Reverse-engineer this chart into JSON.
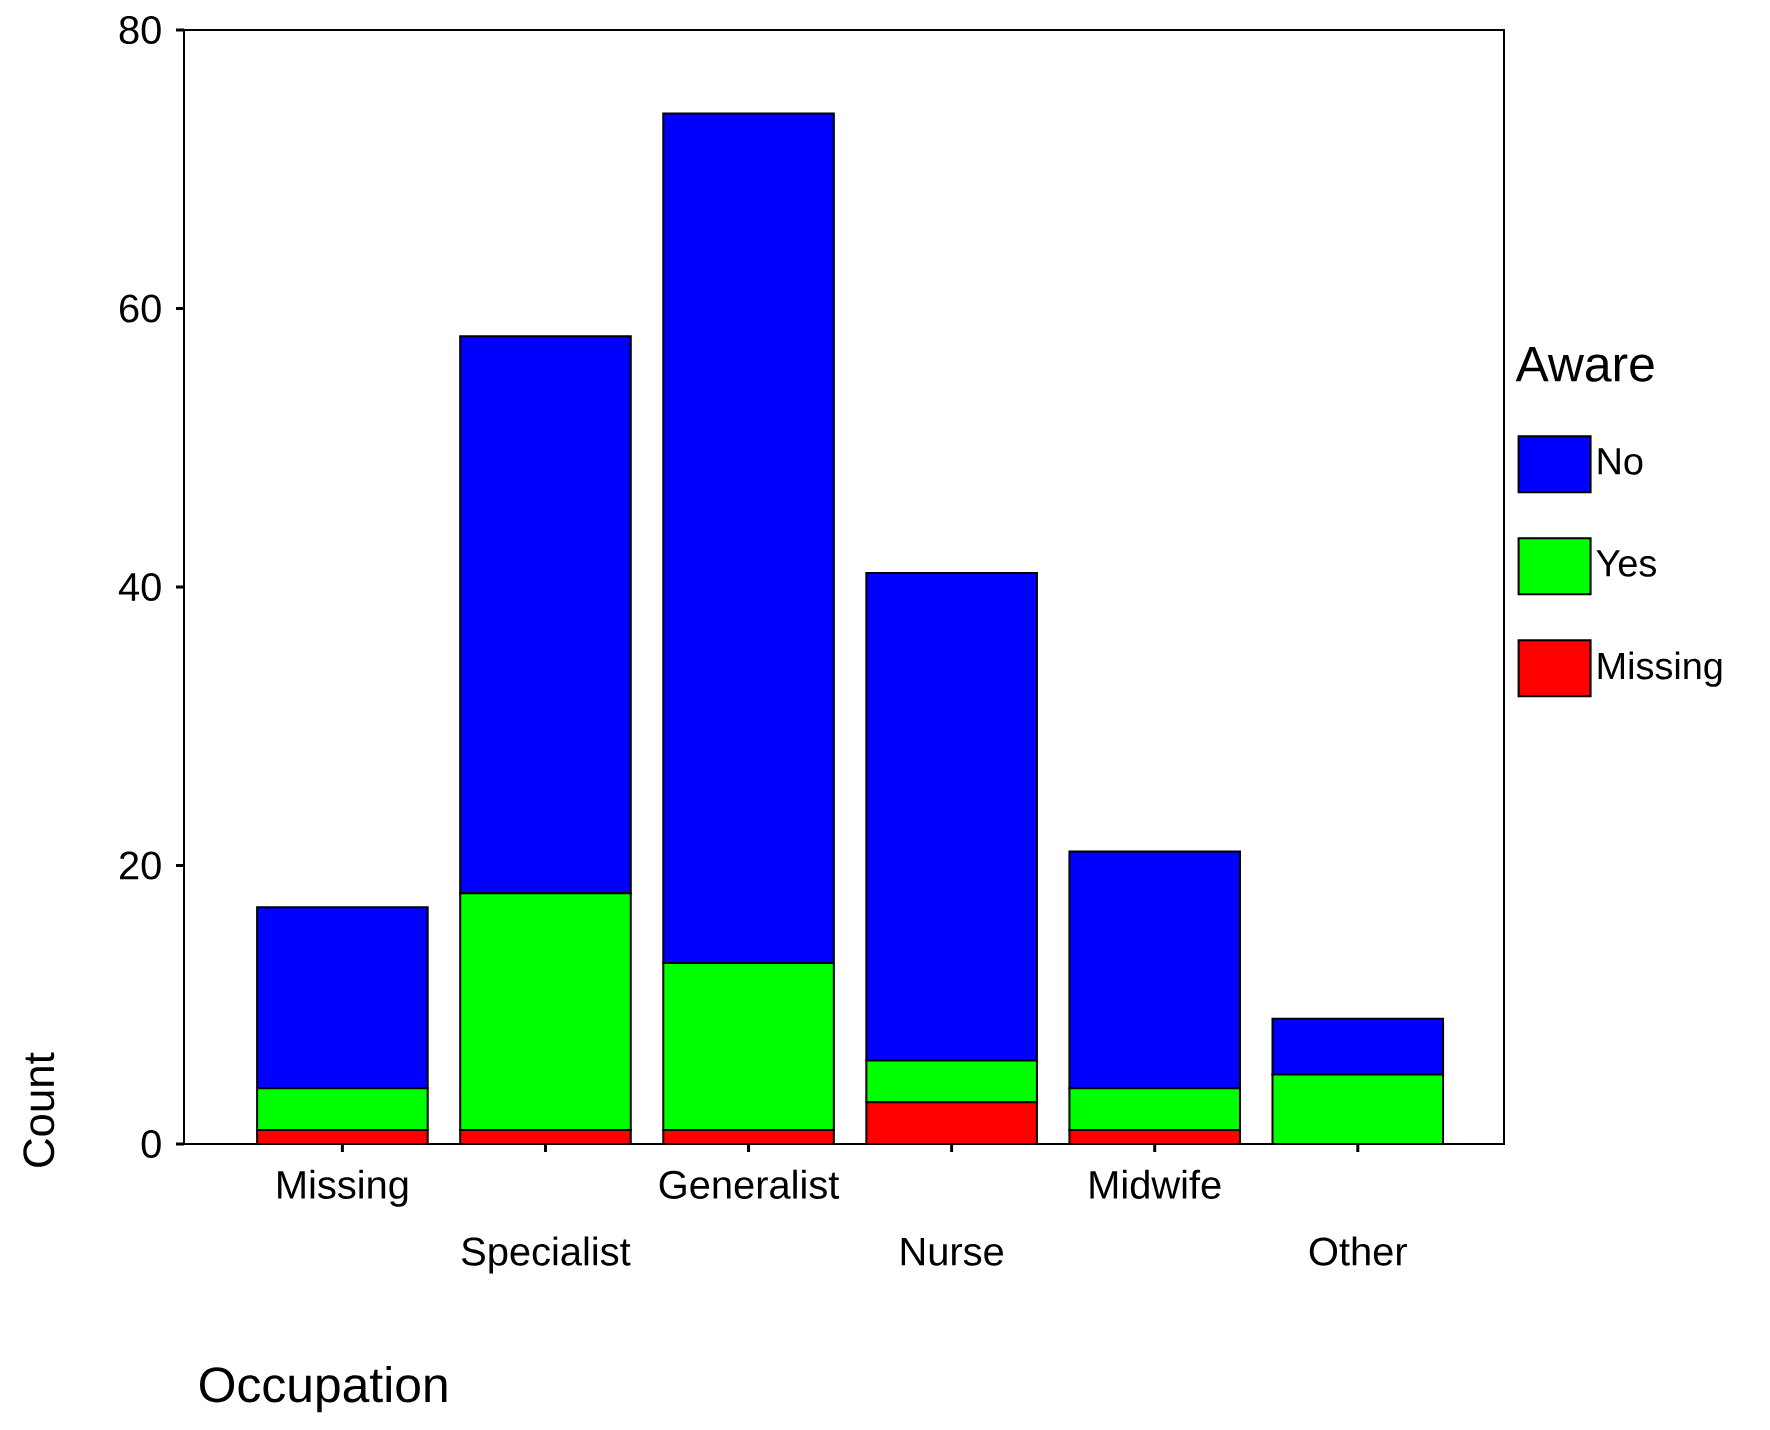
{
  "chart_data": {
    "type": "bar",
    "stacked": true,
    "xlabel": "Occupation",
    "ylabel": "Count",
    "legend_title": "Aware",
    "legend": "right",
    "categories": [
      "Missing",
      "Specialist",
      "Generalist",
      "Nurse",
      "Midwife",
      "Other"
    ],
    "series": [
      {
        "name": "Missing",
        "color": "#ff0000",
        "values": [
          1,
          1,
          1,
          3,
          1,
          0
        ]
      },
      {
        "name": "Yes",
        "color": "#00ff00",
        "values": [
          3,
          17,
          12,
          3,
          3,
          5
        ]
      },
      {
        "name": "No",
        "color": "#0000ff",
        "values": [
          13,
          40,
          61,
          35,
          17,
          4
        ]
      }
    ],
    "ylim": [
      0,
      80
    ],
    "yticks": [
      0,
      20,
      40,
      60,
      80
    ]
  }
}
